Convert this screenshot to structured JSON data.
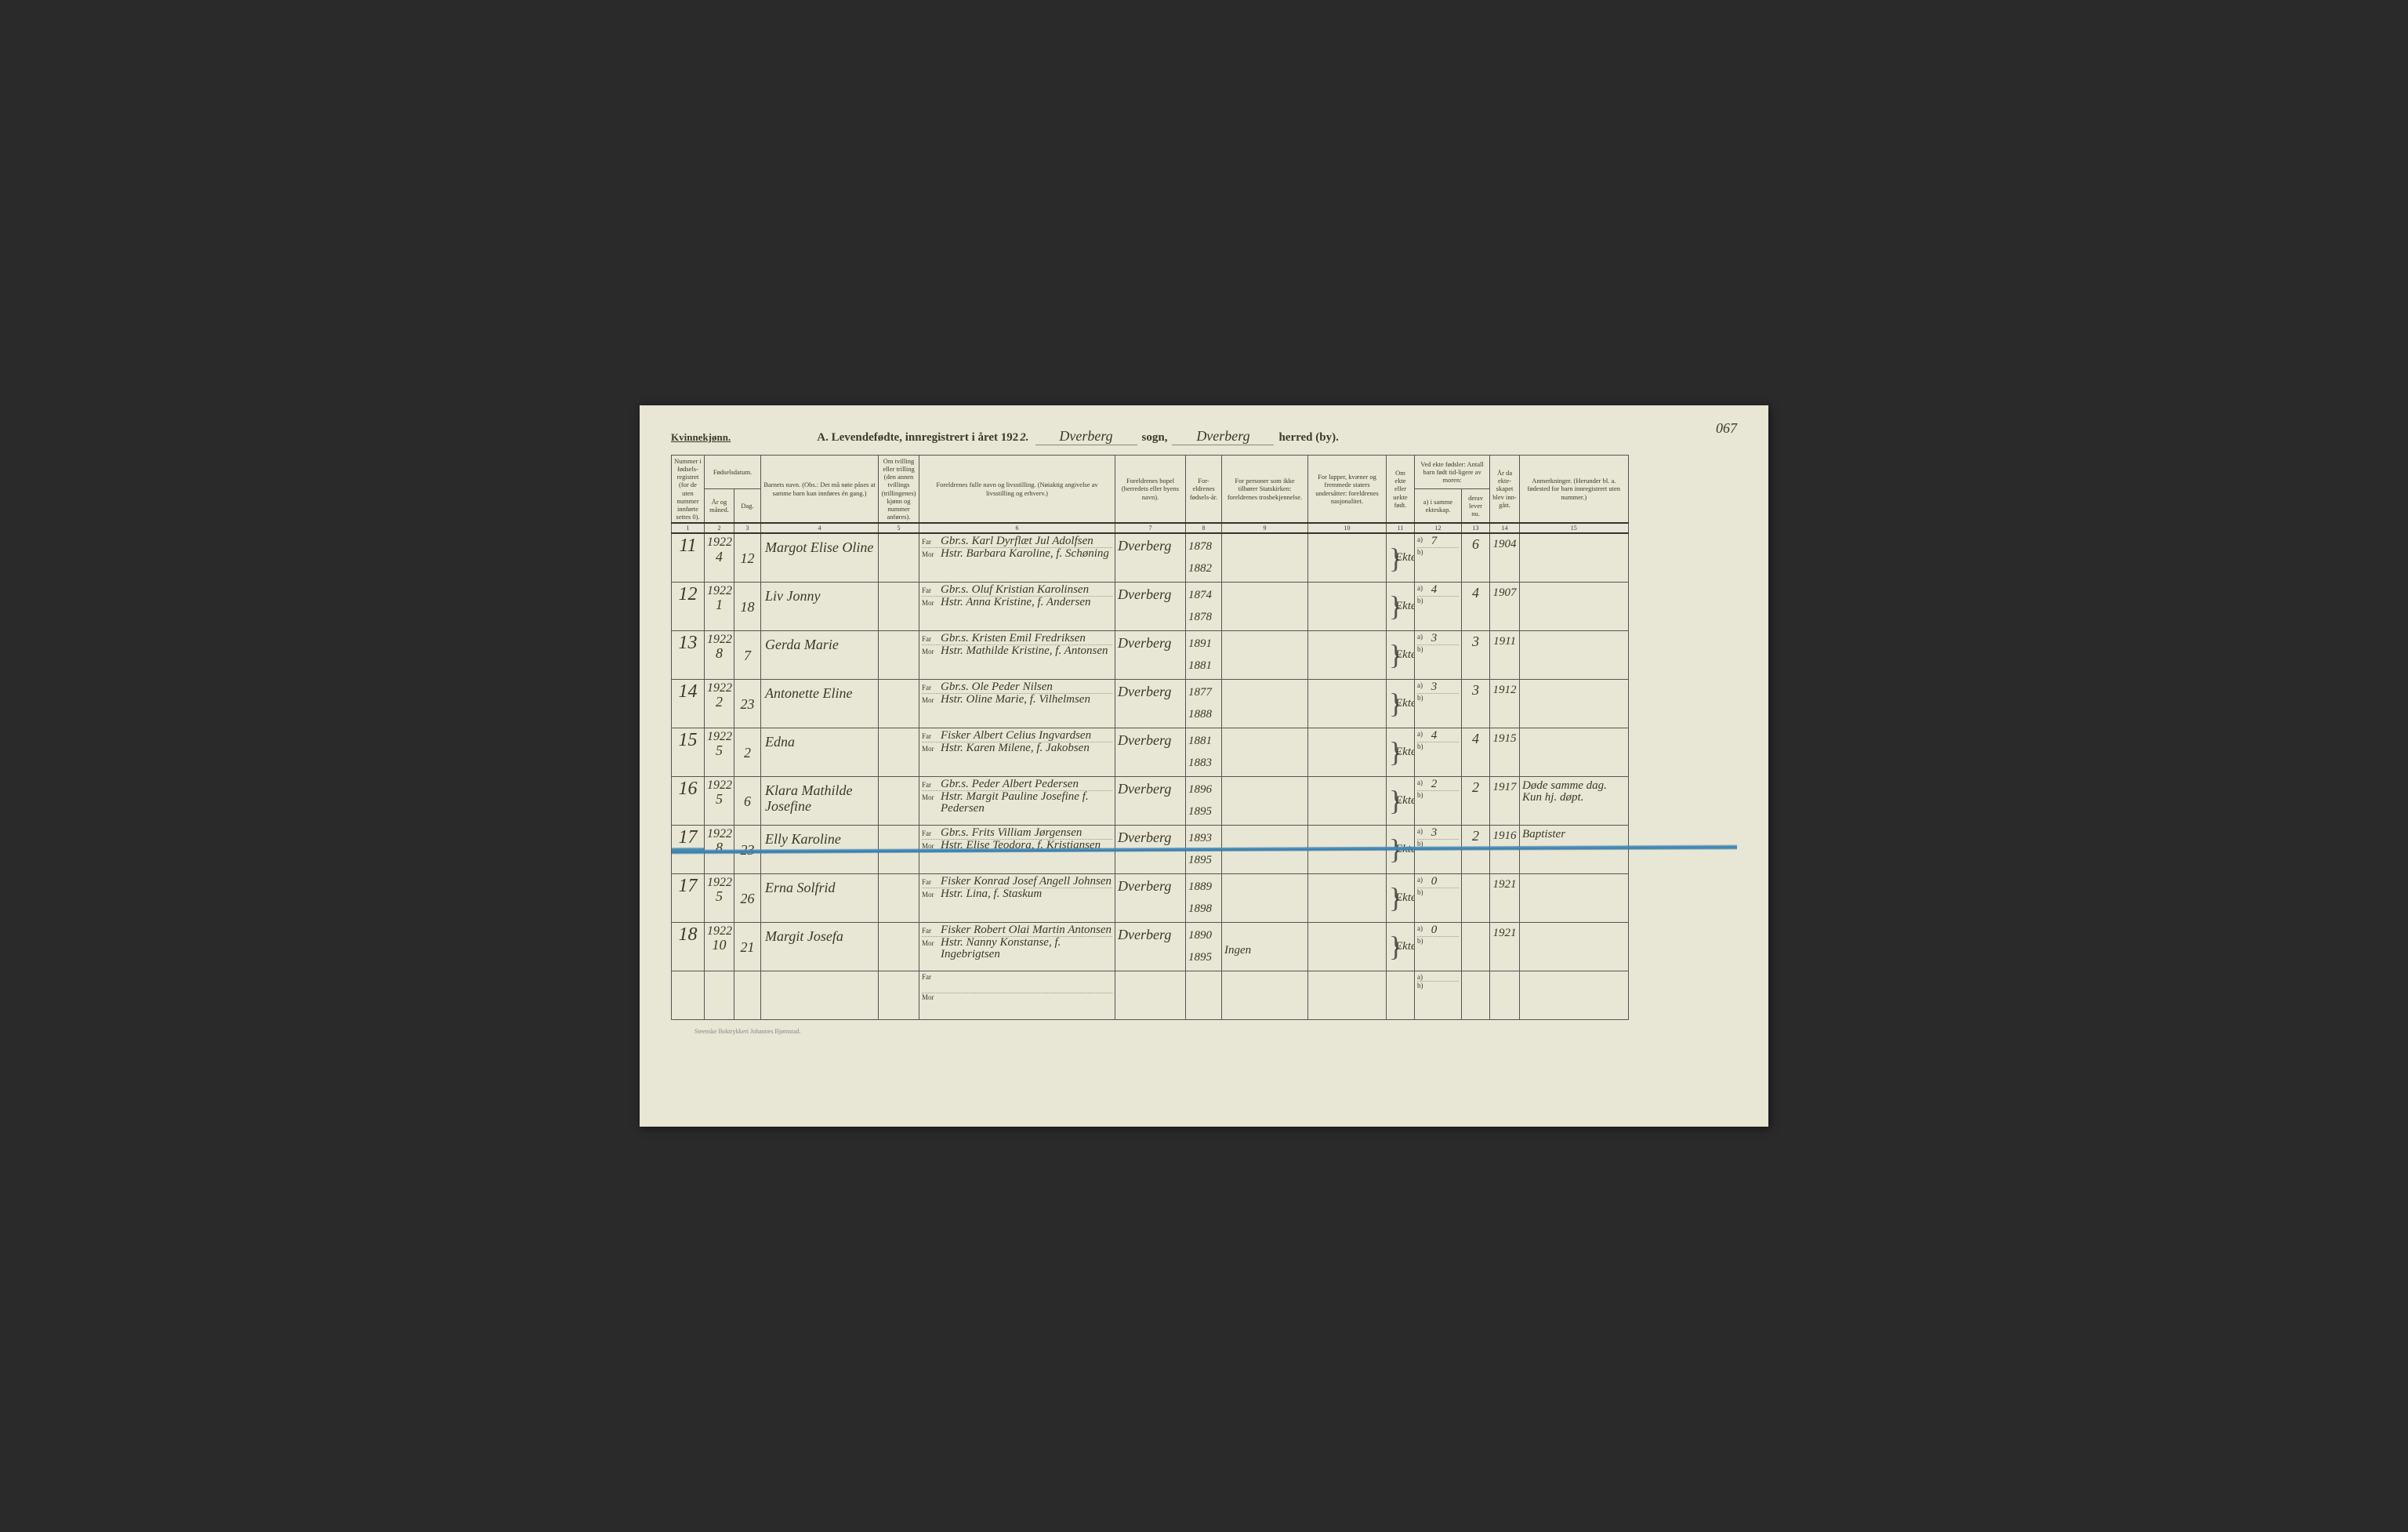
{
  "meta": {
    "gender_label": "Kvinnekjønn.",
    "title_prefix": "A.  Levendefødte, innregistrert i året 192",
    "year_suffix": "2.",
    "sogn_label": "sogn,",
    "herred_label": "herred (by).",
    "sogn_value": "Dverberg",
    "herred_value": "Dverberg",
    "page_number": "067",
    "imprint": "Steenske Boktrykkeri Johannes Bjørnstad."
  },
  "columns": {
    "c1": "Nummer i fødsels-registret (for de uten nummer innførte settes 0).",
    "c2_top": "Fødselsdatum.",
    "c2a": "År og måned.",
    "c2b": "Dag.",
    "c4": "Barnets navn.\n(Obs.: Det må nøie påses at samme barn kun innføres én gang.)",
    "c5": "Om tvilling eller trilling (den annen tvillings (trillingenes) kjønn og nummer anføres).",
    "c6": "Foreldrenes fulle navn og livsstilling.\n(Nøiaktig angivelse av livsstilling og erhverv.)",
    "c7": "Foreldrenes bopel\n(herredets eller byens navn).",
    "c8": "For-eldrenes fødsels-år.",
    "c9": "For personer som ikke tilhører Statskirken:\nforeldrenes trosbekjennelse.",
    "c10": "For lapper, kvæner og fremmede staters undersåtter:\nforeldrenes nasjonalitet.",
    "c11": "Om ekte eller uekte født.",
    "c12_top": "Ved ekte fødsler:\nAntall barn født tid-ligere av moren:",
    "c12a": "a) i samme ekteskap.",
    "c12b": "b) i tidligere ekteskap.",
    "c13": "derav lever nu.",
    "c14": "År da ekte-skapet blev inn-gått.",
    "c15": "Anmerkninger.\n(Herunder bl. a. fødested for barn innregistrert uten nummer.)",
    "far": "Far",
    "mor": "Mor",
    "col_numbers": [
      "1",
      "2",
      "3",
      "4",
      "5",
      "6",
      "7",
      "8",
      "9",
      "10",
      "11",
      "12",
      "13",
      "14",
      "15"
    ]
  },
  "rows": [
    {
      "num": "11",
      "year": "1922",
      "month": "4",
      "day": "12",
      "name": "Margot Elise Oline",
      "far": "Gbr.s. Karl Dyrflæt Jul Adolfsen",
      "mor": "Hstr. Barbara Karoline, f. Schøning",
      "residence": "Dverberg",
      "fby": "1878",
      "mby": "1882",
      "legit": "Ekte",
      "c12a": "7",
      "c12b": "",
      "c13": "6",
      "c14": "1904",
      "remarks": ""
    },
    {
      "num": "12",
      "year": "1922",
      "month": "1",
      "day": "18",
      "name": "Liv Jonny",
      "far": "Gbr.s. Oluf Kristian Karolinsen",
      "mor": "Hstr. Anna Kristine, f. Andersen",
      "residence": "Dverberg",
      "fby": "1874",
      "mby": "1878",
      "legit": "Ekte",
      "c12a": "4",
      "c12b": "",
      "c13": "4",
      "c14": "1907",
      "remarks": ""
    },
    {
      "num": "13",
      "year": "1922",
      "month": "8",
      "day": "7",
      "name": "Gerda Marie",
      "far": "Gbr.s. Kristen Emil Fredriksen",
      "mor": "Hstr. Mathilde Kristine, f. Antonsen",
      "residence": "Dverberg",
      "fby": "1891",
      "mby": "1881",
      "legit": "Ekte",
      "c12a": "3",
      "c12b": "",
      "c13": "3",
      "c14": "1911",
      "remarks": ""
    },
    {
      "num": "14",
      "year": "1922",
      "month": "2",
      "day": "23",
      "name": "Antonette Eline",
      "far": "Gbr.s. Ole Peder Nilsen",
      "mor": "Hstr. Oline Marie, f. Vilhelmsen",
      "residence": "Dverberg",
      "fby": "1877",
      "mby": "1888",
      "legit": "Ekte",
      "c12a": "3",
      "c12b": "",
      "c13": "3",
      "c14": "1912",
      "remarks": ""
    },
    {
      "num": "15",
      "year": "1922",
      "month": "5",
      "day": "2",
      "name": "Edna",
      "far": "Fisker Albert Celius Ingvardsen",
      "mor": "Hstr. Karen Milene, f. Jakobsen",
      "residence": "Dverberg",
      "fby": "1881",
      "mby": "1883",
      "legit": "Ekte",
      "c12a": "4",
      "c12b": "",
      "c13": "4",
      "c14": "1915",
      "remarks": ""
    },
    {
      "num": "16",
      "year": "1922",
      "month": "5",
      "day": "6",
      "name": "Klara Mathilde Josefine",
      "far": "Gbr.s. Peder Albert Pedersen",
      "mor": "Hstr. Margit Pauline Josefine f. Pedersen",
      "residence": "Dverberg",
      "fby": "1896",
      "mby": "1895",
      "legit": "Ekte",
      "c12a": "2",
      "c12b": "",
      "c13": "2",
      "c14": "1917",
      "remarks": "Døde samme dag. Kun hj. døpt."
    },
    {
      "num": "17",
      "year": "1922",
      "month": "8",
      "day": "23",
      "name": "Elly Karoline",
      "far": "Gbr.s. Frits Villiam Jørgensen",
      "mor": "Hstr. Elise Teodora, f. Kristiansen",
      "residence": "Dverberg",
      "fby": "1893",
      "mby": "1895",
      "legit": "Ekte",
      "c12a": "3",
      "c12b": "",
      "c13": "2",
      "c14": "1916",
      "remarks": "Baptister",
      "struck": true
    },
    {
      "num": "17",
      "year": "1922",
      "month": "5",
      "day": "26",
      "name": "Erna Solfrid",
      "far": "Fisker Konrad Josef Angell Johnsen",
      "mor": "Hstr. Lina, f. Staskum",
      "residence": "Dverberg",
      "fby": "1889",
      "mby": "1898",
      "legit": "Ekte",
      "c12a": "0",
      "c12b": "",
      "c13": "",
      "c14": "1921",
      "remarks": ""
    },
    {
      "num": "18",
      "year": "1922",
      "month": "10",
      "day": "21",
      "name": "Margit Josefa",
      "far": "Fisker Robert Olai Martin Antonsen",
      "mor": "Hstr. Nanny Konstanse, f. Ingebrigtsen",
      "residence": "Dverberg",
      "fby": "1890",
      "mby": "1895",
      "c9": "Ingen",
      "legit": "Ekte",
      "c12a": "0",
      "c12b": "",
      "c13": "",
      "c14": "1921",
      "remarks": ""
    }
  ]
}
